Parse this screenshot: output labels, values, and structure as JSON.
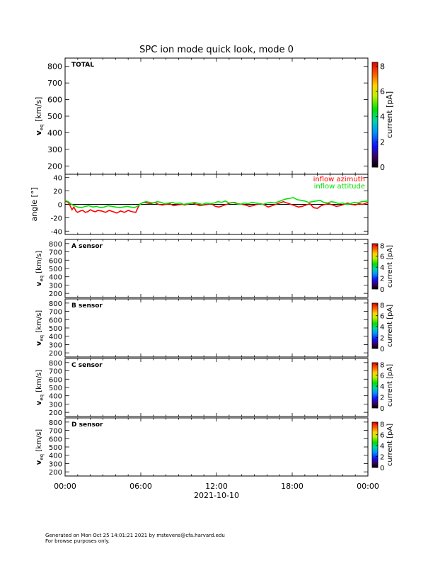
{
  "title": "SPC ion mode quick look, mode 0",
  "x_axis": {
    "tick_labels": [
      "00:00",
      "06:00",
      "12:00",
      "18:00",
      "00:00"
    ],
    "date_label": "2021-10-10"
  },
  "footer": {
    "line1": "Generated on Mon Oct 25 14:01:21 2021 by mstevens@cfa.harvard.edu",
    "line2": "For browse purposes only."
  },
  "chart_data": [
    {
      "type": "heatmap",
      "panel": "TOTAL",
      "label": "TOTAL",
      "ylabel": "v",
      "ylabel_sub": "eq",
      "ylabel_unit": "[km/s]",
      "ylim": [
        150,
        850
      ],
      "y_ticks": [
        200,
        300,
        400,
        500,
        600,
        700,
        800
      ],
      "colorbar": {
        "label": "current [pA]",
        "range": [
          0,
          8.3
        ],
        "ticks": [
          0,
          2,
          4,
          6,
          8
        ]
      },
      "values": []
    },
    {
      "type": "line",
      "panel": "angle",
      "ylabel": "angle [°]",
      "ylim": [
        -45,
        45
      ],
      "y_ticks": [
        -40,
        -20,
        0,
        20,
        40
      ],
      "x_unit": "hours",
      "xlim": [
        0,
        24
      ],
      "legend_position": "top-right",
      "series": [
        {
          "name": "inflow azimuth",
          "color": "#ff0000",
          "x": [
            0.0,
            0.25,
            0.4,
            0.55,
            0.7,
            0.85,
            1.0,
            1.2,
            1.4,
            1.6,
            1.8,
            2.0,
            2.2,
            2.4,
            2.6,
            2.9,
            3.2,
            3.5,
            3.8,
            4.1,
            4.4,
            4.7,
            5.0,
            5.3,
            5.6,
            5.9,
            6.2,
            6.5,
            6.8,
            7.1,
            7.4,
            7.7,
            8.0,
            8.3,
            8.6,
            8.9,
            9.2,
            9.5,
            9.8,
            10.1,
            10.4,
            10.7,
            11.0,
            11.3,
            11.6,
            11.9,
            12.2,
            12.5,
            12.8,
            13.1,
            13.4,
            13.7,
            14.0,
            14.3,
            14.6,
            14.9,
            15.2,
            15.5,
            15.8,
            16.1,
            16.4,
            16.7,
            17.0,
            17.3,
            17.6,
            17.9,
            18.2,
            18.5,
            18.8,
            19.1,
            19.4,
            19.7,
            20.0,
            20.3,
            20.6,
            20.9,
            21.2,
            21.5,
            21.8,
            22.1,
            22.4,
            22.7,
            23.0,
            23.3,
            23.6,
            24.0
          ],
          "y": [
            5,
            3,
            -2,
            -8,
            -4,
            -10,
            -12,
            -10,
            -9,
            -12,
            -11,
            -8,
            -10,
            -11,
            -9,
            -10,
            -12,
            -9,
            -11,
            -13,
            -10,
            -12,
            -9,
            -11,
            -12,
            0,
            3,
            2,
            1,
            3,
            0,
            -1,
            0,
            1,
            -2,
            -1,
            0,
            -1,
            1,
            2,
            0,
            -2,
            -1,
            0,
            1,
            -3,
            -4,
            -2,
            0,
            2,
            3,
            1,
            0,
            -1,
            -3,
            -2,
            0,
            1,
            -1,
            -4,
            -2,
            0,
            2,
            4,
            2,
            0,
            -2,
            -4,
            -3,
            -1,
            1,
            -5,
            -6,
            -2,
            0,
            1,
            -1,
            -3,
            -2,
            0,
            2,
            0,
            -1,
            1,
            0,
            3
          ]
        },
        {
          "name": "inflow attitude",
          "color": "#00e000",
          "x": [
            0.0,
            0.25,
            0.5,
            0.75,
            1.0,
            1.3,
            1.6,
            1.9,
            2.2,
            2.5,
            2.8,
            3.1,
            3.4,
            3.7,
            4.0,
            4.3,
            4.6,
            4.9,
            5.2,
            5.5,
            5.8,
            6.1,
            6.4,
            6.7,
            7.0,
            7.3,
            7.6,
            7.9,
            8.2,
            8.5,
            8.8,
            9.1,
            9.4,
            9.7,
            10.0,
            10.3,
            10.6,
            10.9,
            11.2,
            11.5,
            11.8,
            12.1,
            12.4,
            12.7,
            13.0,
            13.3,
            13.6,
            13.9,
            14.2,
            14.5,
            14.8,
            15.1,
            15.4,
            15.7,
            16.0,
            16.3,
            16.6,
            16.9,
            17.2,
            17.5,
            17.8,
            18.1,
            18.4,
            18.7,
            19.0,
            19.3,
            19.6,
            19.9,
            20.2,
            20.5,
            20.8,
            21.1,
            21.4,
            21.7,
            22.0,
            22.3,
            22.6,
            22.9,
            23.2,
            23.5,
            24.0
          ],
          "y": [
            6,
            4,
            0,
            -2,
            -4,
            -5,
            -3,
            -2,
            -4,
            -3,
            -5,
            -4,
            -2,
            -3,
            -4,
            -5,
            -4,
            -3,
            -4,
            -5,
            -2,
            2,
            4,
            3,
            2,
            4,
            3,
            1,
            2,
            3,
            1,
            2,
            0,
            1,
            2,
            3,
            1,
            0,
            2,
            1,
            2,
            4,
            3,
            5,
            2,
            3,
            1,
            0,
            2,
            1,
            3,
            2,
            1,
            0,
            2,
            3,
            2,
            4,
            6,
            8,
            9,
            10,
            7,
            6,
            5,
            3,
            4,
            5,
            6,
            3,
            2,
            4,
            3,
            1,
            2,
            0,
            1,
            3,
            2,
            4,
            5
          ]
        }
      ]
    },
    {
      "type": "heatmap",
      "panel": "A",
      "label": "A sensor",
      "ylabel": "v",
      "ylabel_sub": "eq",
      "ylabel_unit": "[km/s]",
      "ylim": [
        150,
        850
      ],
      "y_ticks": [
        200,
        300,
        400,
        500,
        600,
        700,
        800
      ],
      "colorbar": {
        "label": "current [pA]",
        "range": [
          0,
          8.3
        ],
        "ticks": [
          0,
          2,
          4,
          6,
          8
        ]
      },
      "values": []
    },
    {
      "type": "heatmap",
      "panel": "B",
      "label": "B sensor",
      "ylabel": "v",
      "ylabel_sub": "eq",
      "ylabel_unit": "[km/s]",
      "ylim": [
        150,
        850
      ],
      "y_ticks": [
        200,
        300,
        400,
        500,
        600,
        700,
        800
      ],
      "colorbar": {
        "label": "current [pA]",
        "range": [
          0,
          8.3
        ],
        "ticks": [
          0,
          2,
          4,
          6,
          8
        ]
      },
      "values": []
    },
    {
      "type": "heatmap",
      "panel": "C",
      "label": "C sensor",
      "ylabel": "v",
      "ylabel_sub": "eq",
      "ylabel_unit": "[km/s]",
      "ylim": [
        150,
        850
      ],
      "y_ticks": [
        200,
        300,
        400,
        500,
        600,
        700,
        800
      ],
      "colorbar": {
        "label": "current [pA]",
        "range": [
          0,
          8.3
        ],
        "ticks": [
          0,
          2,
          4,
          6,
          8
        ]
      },
      "values": []
    },
    {
      "type": "heatmap",
      "panel": "D",
      "label": "D sensor",
      "ylabel": "v",
      "ylabel_sub": "eq",
      "ylabel_unit": "[km/s]",
      "ylim": [
        150,
        850
      ],
      "y_ticks": [
        200,
        300,
        400,
        500,
        600,
        700,
        800
      ],
      "colorbar": {
        "label": "current [pA]",
        "range": [
          0,
          8.3
        ],
        "ticks": [
          0,
          2,
          4,
          6,
          8
        ]
      },
      "values": []
    }
  ]
}
